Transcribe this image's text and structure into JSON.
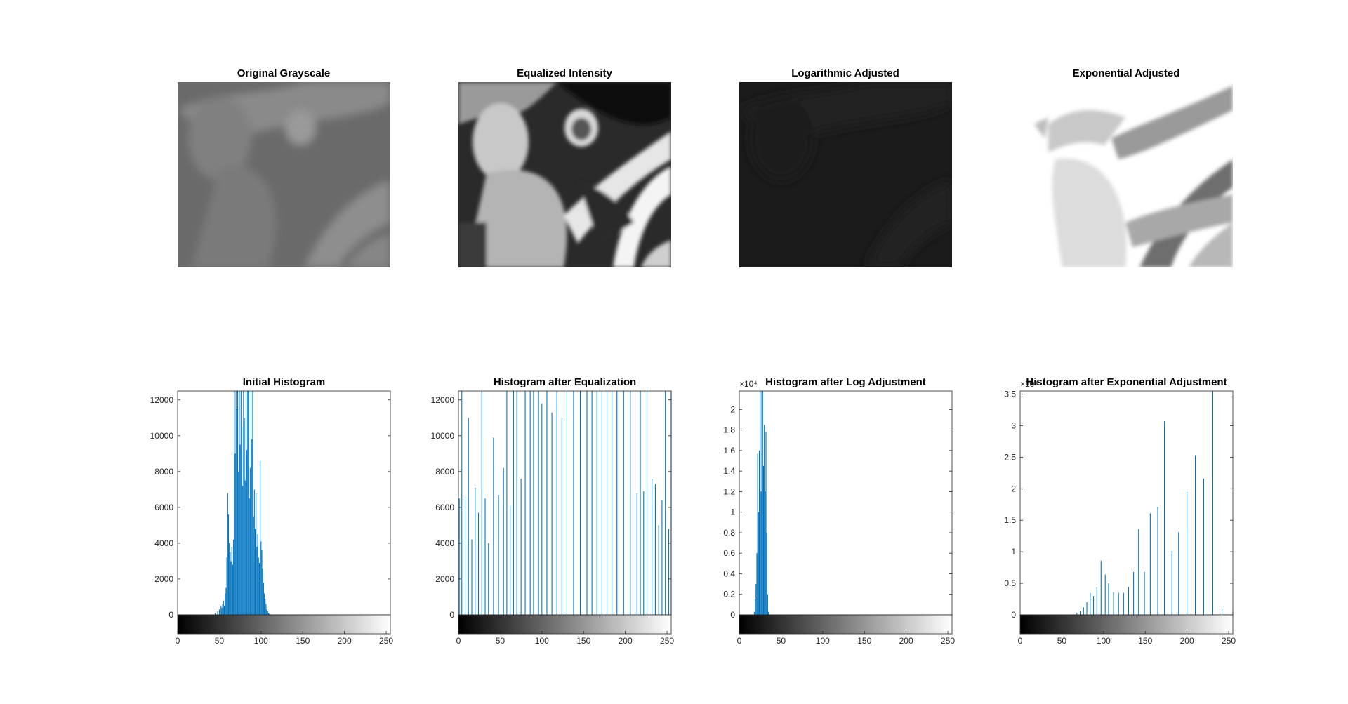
{
  "panels": {
    "original": {
      "title": "Original Grayscale"
    },
    "equalized": {
      "title": "Equalized Intensity"
    },
    "log": {
      "title": "Logarithmic Adjusted"
    },
    "exp": {
      "title": "Exponential Adjusted"
    }
  },
  "colors": {
    "bar": "#0072BD",
    "axis": "#262626",
    "background": "#ffffff"
  },
  "chart_data": [
    {
      "id": "hist-initial",
      "type": "bar",
      "title": "Initial Histogram",
      "xlim": [
        0,
        255
      ],
      "ylim": [
        0,
        12500
      ],
      "xticks": [
        0,
        50,
        100,
        150,
        200,
        250
      ],
      "yticks": [
        0,
        2000,
        4000,
        6000,
        8000,
        10000,
        12000
      ],
      "ytick_labels": [
        "0",
        "2000",
        "4000",
        "6000",
        "8000",
        "10000",
        "12000"
      ],
      "exponent_label": "",
      "x": [
        45,
        48,
        50,
        52,
        53,
        54,
        55,
        56,
        57,
        58,
        59,
        60,
        61,
        62,
        63,
        64,
        65,
        66,
        67,
        68,
        69,
        70,
        71,
        72,
        73,
        74,
        75,
        76,
        77,
        78,
        79,
        80,
        81,
        82,
        83,
        84,
        85,
        86,
        87,
        88,
        89,
        90,
        91,
        92,
        93,
        94,
        95,
        96,
        97,
        98,
        99,
        100,
        101,
        102,
        103,
        104,
        105,
        106,
        107,
        108,
        109,
        110
      ],
      "values": [
        100,
        200,
        300,
        500,
        400,
        600,
        800,
        500,
        1200,
        1500,
        3200,
        6800,
        5600,
        4000,
        3500,
        3000,
        3800,
        2800,
        4200,
        12500,
        9000,
        12500,
        11500,
        12500,
        8000,
        12500,
        9500,
        12500,
        10500,
        7200,
        12500,
        11000,
        7500,
        12500,
        9200,
        12500,
        12500,
        6500,
        8200,
        12500,
        9800,
        12500,
        5500,
        7000,
        4800,
        6800,
        3800,
        4500,
        3200,
        2900,
        8600,
        4100,
        3600,
        2600,
        1800,
        1200,
        900,
        600,
        300,
        200,
        100,
        50
      ]
    },
    {
      "id": "hist-equalized",
      "type": "bar",
      "title": "Histogram after Equalization",
      "xlim": [
        0,
        255
      ],
      "ylim": [
        0,
        12500
      ],
      "xticks": [
        0,
        50,
        100,
        150,
        200,
        250
      ],
      "yticks": [
        0,
        2000,
        4000,
        6000,
        8000,
        10000,
        12000
      ],
      "ytick_labels": [
        "0",
        "2000",
        "4000",
        "6000",
        "8000",
        "10000",
        "12000"
      ],
      "exponent_label": "",
      "x": [
        1,
        4,
        8,
        12,
        16,
        20,
        24,
        28,
        32,
        36,
        42,
        48,
        54,
        58,
        62,
        66,
        70,
        75,
        80,
        86,
        90,
        96,
        100,
        106,
        112,
        118,
        124,
        130,
        138,
        146,
        154,
        160,
        166,
        172,
        178,
        184,
        190,
        198,
        206,
        214,
        218,
        222,
        226,
        232,
        236,
        240,
        244,
        248,
        252,
        255
      ],
      "values": [
        6500,
        12500,
        6600,
        11000,
        4200,
        7100,
        5700,
        12500,
        6500,
        4000,
        9900,
        6700,
        8200,
        12500,
        6100,
        12500,
        12500,
        7600,
        12500,
        12500,
        12500,
        12500,
        11800,
        12500,
        11300,
        12500,
        11000,
        12500,
        12500,
        12500,
        12500,
        12500,
        12500,
        12500,
        12500,
        12500,
        12500,
        12500,
        12500,
        6800,
        12500,
        6900,
        12500,
        7600,
        7300,
        5000,
        6400,
        12500,
        4800,
        12500
      ]
    },
    {
      "id": "hist-log",
      "type": "bar",
      "title": "Histogram after Log Adjustment",
      "xlim": [
        0,
        255
      ],
      "ylim": [
        0,
        21800
      ],
      "xticks": [
        0,
        50,
        100,
        150,
        200,
        250
      ],
      "yticks": [
        0,
        2000,
        4000,
        6000,
        8000,
        10000,
        12000,
        14000,
        16000,
        18000,
        20000
      ],
      "ytick_labels": [
        "0",
        "0.2",
        "0.4",
        "0.6",
        "0.8",
        "1",
        "1.2",
        "1.4",
        "1.6",
        "1.8",
        "2"
      ],
      "exponent_label": "×10⁴",
      "x": [
        18,
        19,
        20,
        21,
        22,
        23,
        24,
        25,
        26,
        27,
        28,
        29,
        30,
        31,
        32,
        33,
        34,
        35
      ],
      "values": [
        300,
        1500,
        3000,
        6000,
        15700,
        10000,
        16000,
        21800,
        12000,
        21800,
        21800,
        14500,
        18500,
        12000,
        17800,
        8000,
        2000,
        300
      ]
    },
    {
      "id": "hist-exp",
      "type": "bar",
      "title": "Histogram after Exponential Adjustment",
      "xlim": [
        0,
        255
      ],
      "ylim": [
        0,
        3.55
      ],
      "xticks": [
        0,
        50,
        100,
        150,
        200,
        250
      ],
      "yticks": [
        0,
        0.5,
        1,
        1.5,
        2,
        2.5,
        3,
        3.5
      ],
      "ytick_labels": [
        "0",
        "0.5",
        "1",
        "1.5",
        "2",
        "2.5",
        "3",
        "3.5"
      ],
      "exponent_label": "×10⁴",
      "x": [
        68,
        72,
        76,
        80,
        84,
        88,
        92,
        97,
        102,
        106,
        112,
        118,
        124,
        130,
        136,
        142,
        149,
        156,
        165,
        173,
        182,
        190,
        200,
        210,
        220,
        231,
        242,
        255
      ],
      "values": [
        0.03,
        0.06,
        0.12,
        0.2,
        0.35,
        0.3,
        0.44,
        0.86,
        0.64,
        0.5,
        0.36,
        0.35,
        0.35,
        0.44,
        0.68,
        1.36,
        0.68,
        1.61,
        1.71,
        3.07,
        1.01,
        1.31,
        1.95,
        2.53,
        2.16,
        3.55,
        0.1,
        0.05
      ]
    }
  ]
}
